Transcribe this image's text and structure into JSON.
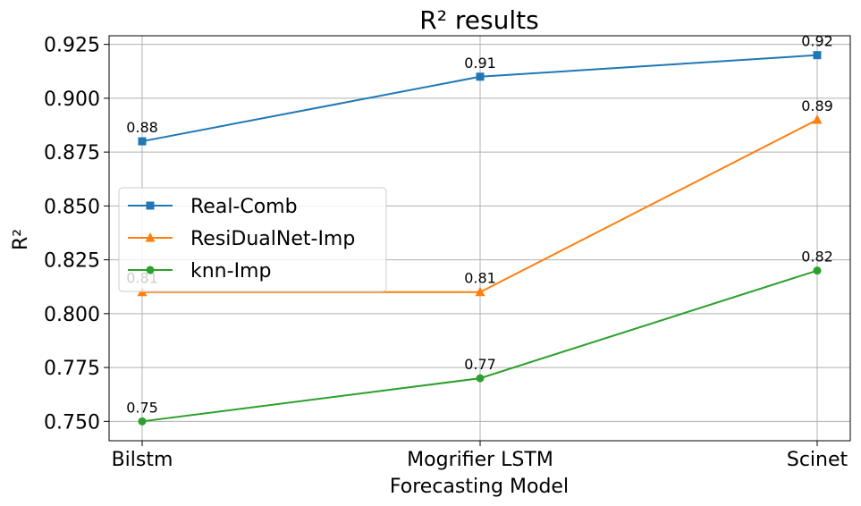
{
  "chart_data": {
    "type": "line",
    "title": "R² results",
    "xlabel": "Forecasting Model",
    "ylabel": "R²",
    "categories": [
      "Bilstm",
      "Mogrifier LSTM",
      "Scinet"
    ],
    "ylim": [
      0.741,
      0.929
    ],
    "yticks": [
      0.75,
      0.775,
      0.8,
      0.825,
      0.85,
      0.875,
      0.9,
      0.925
    ],
    "ytick_labels": [
      "0.750",
      "0.775",
      "0.800",
      "0.825",
      "0.850",
      "0.875",
      "0.900",
      "0.925"
    ],
    "grid": true,
    "legend_position": "center-left",
    "series": [
      {
        "name": "Real-Comb",
        "values": [
          0.88,
          0.91,
          0.92
        ],
        "labels": [
          "0.88",
          "0.91",
          "0.92"
        ],
        "color": "#1f77b4",
        "marker": "square"
      },
      {
        "name": "ResiDualNet-Imp",
        "values": [
          0.81,
          0.81,
          0.89
        ],
        "labels": [
          "0.81",
          "0.81",
          "0.89"
        ],
        "color": "#ff7f0e",
        "marker": "triangle"
      },
      {
        "name": "knn-Imp",
        "values": [
          0.75,
          0.77,
          0.82
        ],
        "labels": [
          "0.75",
          "0.77",
          "0.82"
        ],
        "color": "#2ca02c",
        "marker": "circle"
      }
    ]
  }
}
